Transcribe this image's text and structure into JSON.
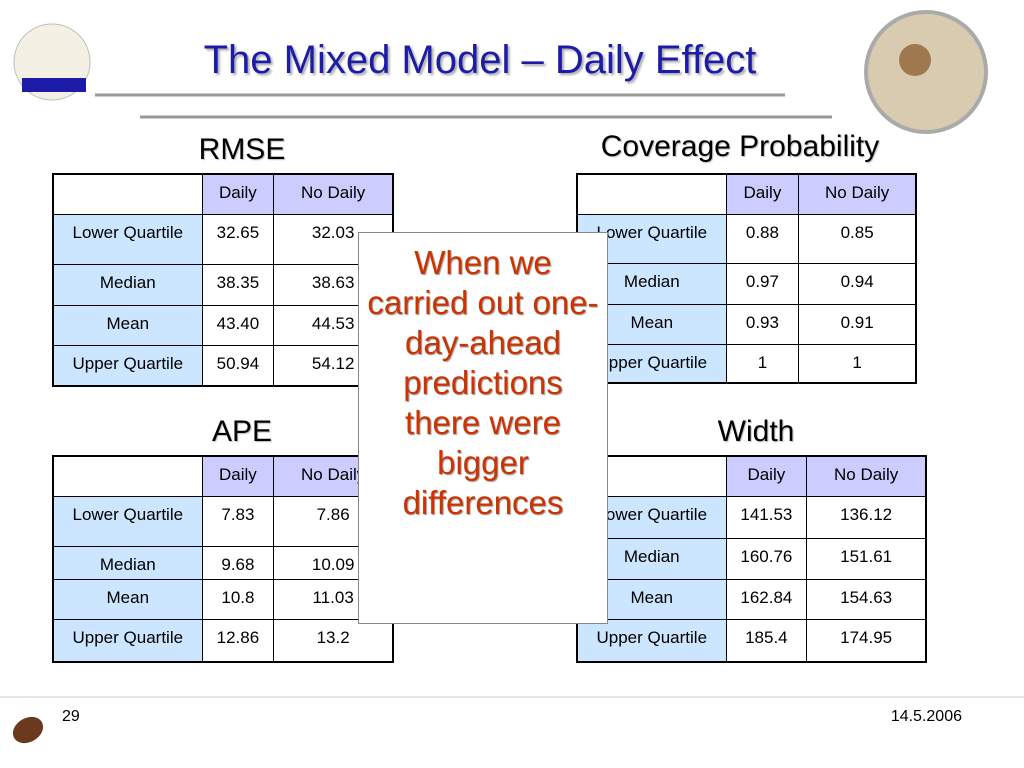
{
  "title": "The Mixed Model – Daily Effect",
  "tables": [
    {
      "heading": "RMSE",
      "columns": [
        "Daily",
        "No Daily"
      ],
      "rows": [
        [
          "Lower Quartile",
          "32.65",
          "32.03"
        ],
        [
          "Median",
          "38.35",
          "38.63"
        ],
        [
          "Mean",
          "43.40",
          "44.53"
        ],
        [
          "Upper Quartile",
          "50.94",
          "54.12"
        ]
      ]
    },
    {
      "heading": "Coverage Probability",
      "columns": [
        "Daily",
        "No Daily"
      ],
      "rows": [
        [
          "Lower Quartile",
          "0.88",
          "0.85"
        ],
        [
          "Median",
          "0.97",
          "0.94"
        ],
        [
          "Mean",
          "0.93",
          "0.91"
        ],
        [
          "Upper Quartile",
          "1",
          "1"
        ]
      ]
    },
    {
      "heading": "APE",
      "columns": [
        "Daily",
        "No Daily"
      ],
      "rows": [
        [
          "Lower Quartile",
          "7.83",
          "7.86"
        ],
        [
          "Median",
          "9.68",
          "10.09"
        ],
        [
          "Mean",
          "10.8",
          "11.03"
        ],
        [
          "Upper Quartile",
          "12.86",
          "13.2"
        ]
      ]
    },
    {
      "heading": "Width",
      "columns": [
        "Daily",
        "No Daily"
      ],
      "rows": [
        [
          "Lower Quartile",
          "141.53",
          "136.12"
        ],
        [
          "Median",
          "160.76",
          "151.61"
        ],
        [
          "Mean",
          "162.84",
          "154.63"
        ],
        [
          "Upper Quartile",
          "185.4",
          "174.95"
        ]
      ]
    }
  ],
  "callout": "When we carried out one-day-ahead predictions there were bigger differences",
  "footer": {
    "page": "29",
    "date": "14.5.2006"
  }
}
